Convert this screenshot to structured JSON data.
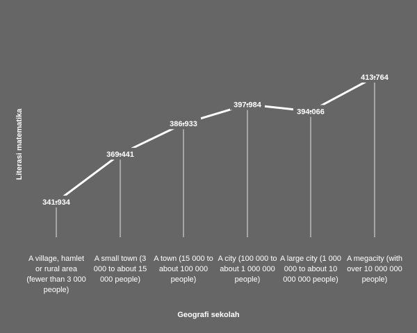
{
  "chart_data": {
    "type": "line",
    "xlabel": "Geografi sekolah",
    "ylabel": "Literasi matematika",
    "categories": [
      "A village, hamlet or rural area (fewer than 3 000 people)",
      "A small town (3 000 to about 15 000 people)",
      "A town (15 000 to about 100 000 people)",
      "A city (100 000 to about 1 000 000 people)",
      "A large city (1 000 000 to about 10 000 000 people)",
      "A megacity (with over 10 000 000 people)"
    ],
    "value_labels": [
      "341.934",
      "369.441",
      "386.933",
      "397.984",
      "394.066",
      "413.764"
    ],
    "series": [
      {
        "values": [
          341.934,
          369.441,
          386.933,
          397.984,
          394.066,
          413.764
        ]
      }
    ],
    "drop_lines": true,
    "grid": false,
    "legend": "none",
    "colors": {
      "background": "#666666",
      "line": "#ffffff",
      "text": "#ffffff"
    }
  }
}
